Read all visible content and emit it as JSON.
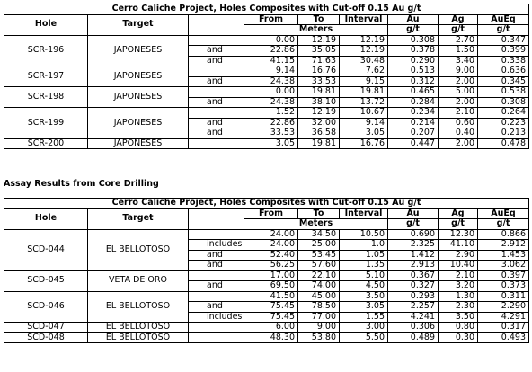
{
  "tables": [
    {
      "title": "Cerro Caliche Project, Holes Composites with Cut-off 0.15 Au g/t",
      "columns": {
        "hole": "Hole",
        "target": "Target",
        "from": "From",
        "to": "To",
        "interval": "Interval",
        "au": "Au",
        "ag": "Ag",
        "aueq": "AuEq",
        "meters": "Meters",
        "units": [
          "g/t",
          "g/t",
          "g/t"
        ]
      },
      "groups": [
        {
          "hole": "SCR-196",
          "target": "JAPONESES",
          "rows": [
            {
              "values": [
                "0.00",
                "12.19",
                "12.19",
                "0.308",
                "2.70",
                "0.347"
              ]
            },
            {
              "qualifier": "and",
              "values": [
                "22.86",
                "35.05",
                "12.19",
                "0.378",
                "1.50",
                "0.399"
              ]
            },
            {
              "qualifier": "and",
              "values": [
                "41.15",
                "71.63",
                "30.48",
                "0.290",
                "3.40",
                "0.338"
              ]
            }
          ]
        },
        {
          "hole": "SCR-197",
          "target": "JAPONESES",
          "rows": [
            {
              "values": [
                "9.14",
                "16.76",
                "7.62",
                "0.513",
                "9.00",
                "0.636"
              ]
            },
            {
              "qualifier": "and",
              "values": [
                "24.38",
                "33.53",
                "9.15",
                "0.312",
                "2.00",
                "0.345"
              ]
            }
          ]
        },
        {
          "hole": "SCR-198",
          "target": "JAPONESES",
          "rows": [
            {
              "values": [
                "0.00",
                "19.81",
                "19.81",
                "0.465",
                "5.00",
                "0.538"
              ]
            },
            {
              "qualifier": "and",
              "values": [
                "24.38",
                "38.10",
                "13.72",
                "0.284",
                "2.00",
                "0.308"
              ]
            }
          ]
        },
        {
          "hole": "SCR-199",
          "target": "JAPONESES",
          "rows": [
            {
              "values": [
                "1.52",
                "12.19",
                "10.67",
                "0.234",
                "2.10",
                "0.264"
              ]
            },
            {
              "qualifier": "and",
              "values": [
                "22.86",
                "32.00",
                "9.14",
                "0.214",
                "0.60",
                "0.223"
              ]
            },
            {
              "qualifier": "and",
              "values": [
                "33.53",
                "36.58",
                "3.05",
                "0.207",
                "0.40",
                "0.213"
              ]
            }
          ]
        },
        {
          "hole": "SCR-200",
          "target": "JAPONESES",
          "rows": [
            {
              "values": [
                "3.05",
                "19.81",
                "16.76",
                "0.447",
                "2.00",
                "0.478"
              ]
            }
          ]
        }
      ]
    },
    {
      "title": "Cerro Caliche Project, Holes Composites with Cut-off 0.15 Au g/t",
      "columns": {
        "hole": "Hole",
        "target": "Target",
        "from": "From",
        "to": "To",
        "interval": "Interval",
        "au": "Au",
        "ag": "Ag",
        "aueq": "AuEq",
        "meters": "Meters",
        "units": [
          "g/t",
          "g/t",
          "g/t"
        ]
      },
      "groups": [
        {
          "hole": "SCD-044",
          "target": "EL BELLOTOSO",
          "rows": [
            {
              "values": [
                "24.00",
                "34.50",
                "10.50",
                "0.690",
                "12.30",
                "0.866"
              ]
            },
            {
              "qualifier": "includes",
              "values": [
                "24.00",
                "25.00",
                "1.0",
                "2.325",
                "41.10",
                "2.912"
              ]
            },
            {
              "qualifier": "and",
              "values": [
                "52.40",
                "53.45",
                "1.05",
                "1.412",
                "2.90",
                "1.453"
              ]
            },
            {
              "qualifier": "and",
              "values": [
                "56.25",
                "57.60",
                "1.35",
                "2.913",
                "10.40",
                "3.062"
              ]
            }
          ]
        },
        {
          "hole": "SCD-045",
          "target": "VETA DE ORO",
          "rows": [
            {
              "values": [
                "17.00",
                "22.10",
                "5.10",
                "0.367",
                "2.10",
                "0.397"
              ]
            },
            {
              "qualifier": "and",
              "values": [
                "69.50",
                "74.00",
                "4.50",
                "0.327",
                "3.20",
                "0.373"
              ]
            }
          ]
        },
        {
          "hole": "SCD-046",
          "target": "EL BELLOTOSO",
          "rows": [
            {
              "values": [
                "41.50",
                "45.00",
                "3.50",
                "0.293",
                "1.30",
                "0.311"
              ]
            },
            {
              "qualifier": "and",
              "values": [
                "75.45",
                "78.50",
                "3.05",
                "2.257",
                "2.30",
                "2.290"
              ]
            },
            {
              "qualifier": "includes",
              "values": [
                "75.45",
                "77.00",
                "1.55",
                "4.241",
                "3.50",
                "4.291"
              ]
            }
          ]
        },
        {
          "hole": "SCD-047",
          "target": "EL BELLOTOSO",
          "rows": [
            {
              "values": [
                "6.00",
                "9.00",
                "3.00",
                "0.306",
                "0.80",
                "0.317"
              ]
            }
          ]
        },
        {
          "hole": "SCD-048",
          "target": "EL BELLOTOSO",
          "rows": [
            {
              "values": [
                "48.30",
                "53.80",
                "5.50",
                "0.489",
                "0.30",
                "0.493"
              ]
            }
          ]
        }
      ]
    }
  ],
  "caption": "Assay Results from Core Drilling"
}
